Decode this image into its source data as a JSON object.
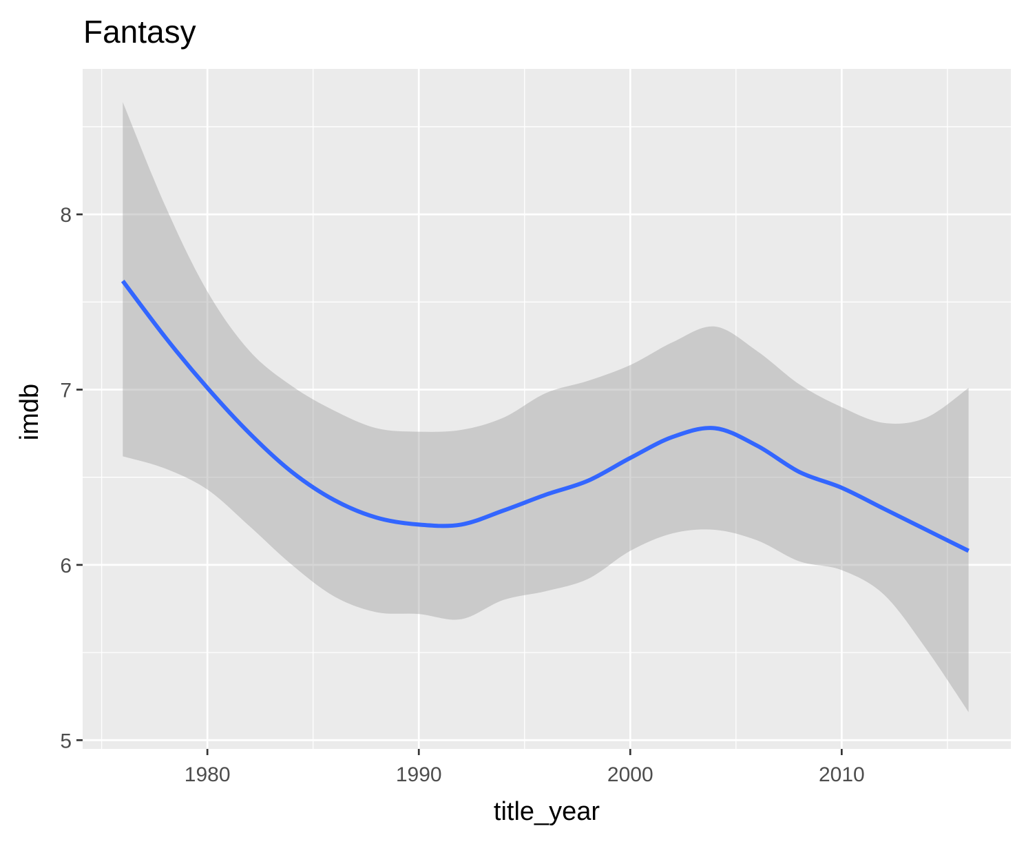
{
  "chart_data": {
    "type": "line",
    "title": "Fantasy",
    "xlabel": "title_year",
    "ylabel": "imdb",
    "xlim": [
      1974.1,
      2018.0
    ],
    "ylim": [
      4.95,
      8.83
    ],
    "x_ticks": [
      1980,
      1990,
      2000,
      2010
    ],
    "y_ticks": [
      5,
      6,
      7,
      8
    ],
    "grid": true,
    "legend": "none",
    "colors": {
      "panel": "#EBEBEB",
      "grid": "#FFFFFF",
      "line": "#3366FF",
      "ribbon": "#999999",
      "tick_label": "#4D4D4D",
      "tick_mark": "#333333"
    },
    "series": [
      {
        "x": [
          1976,
          1978,
          1980,
          1982,
          1984,
          1986,
          1988,
          1990,
          1992,
          1994,
          1996,
          1998,
          2000,
          2002,
          2004,
          2006,
          2008,
          2010,
          2012,
          2014,
          2016
        ],
        "y": [
          7.62,
          7.3,
          7.01,
          6.75,
          6.53,
          6.37,
          6.27,
          6.23,
          6.23,
          6.31,
          6.4,
          6.48,
          6.61,
          6.73,
          6.78,
          6.68,
          6.53,
          6.44,
          6.32,
          6.2,
          6.08
        ],
        "lower": [
          6.62,
          6.55,
          6.43,
          6.22,
          6.0,
          5.82,
          5.73,
          5.72,
          5.69,
          5.8,
          5.85,
          5.92,
          6.08,
          6.18,
          6.2,
          6.14,
          6.02,
          5.97,
          5.83,
          5.52,
          5.16
        ],
        "upper": [
          8.64,
          8.05,
          7.56,
          7.22,
          7.02,
          6.88,
          6.78,
          6.76,
          6.77,
          6.84,
          6.98,
          7.05,
          7.14,
          7.27,
          7.36,
          7.22,
          7.03,
          6.9,
          6.81,
          6.84,
          7.01
        ]
      }
    ]
  }
}
